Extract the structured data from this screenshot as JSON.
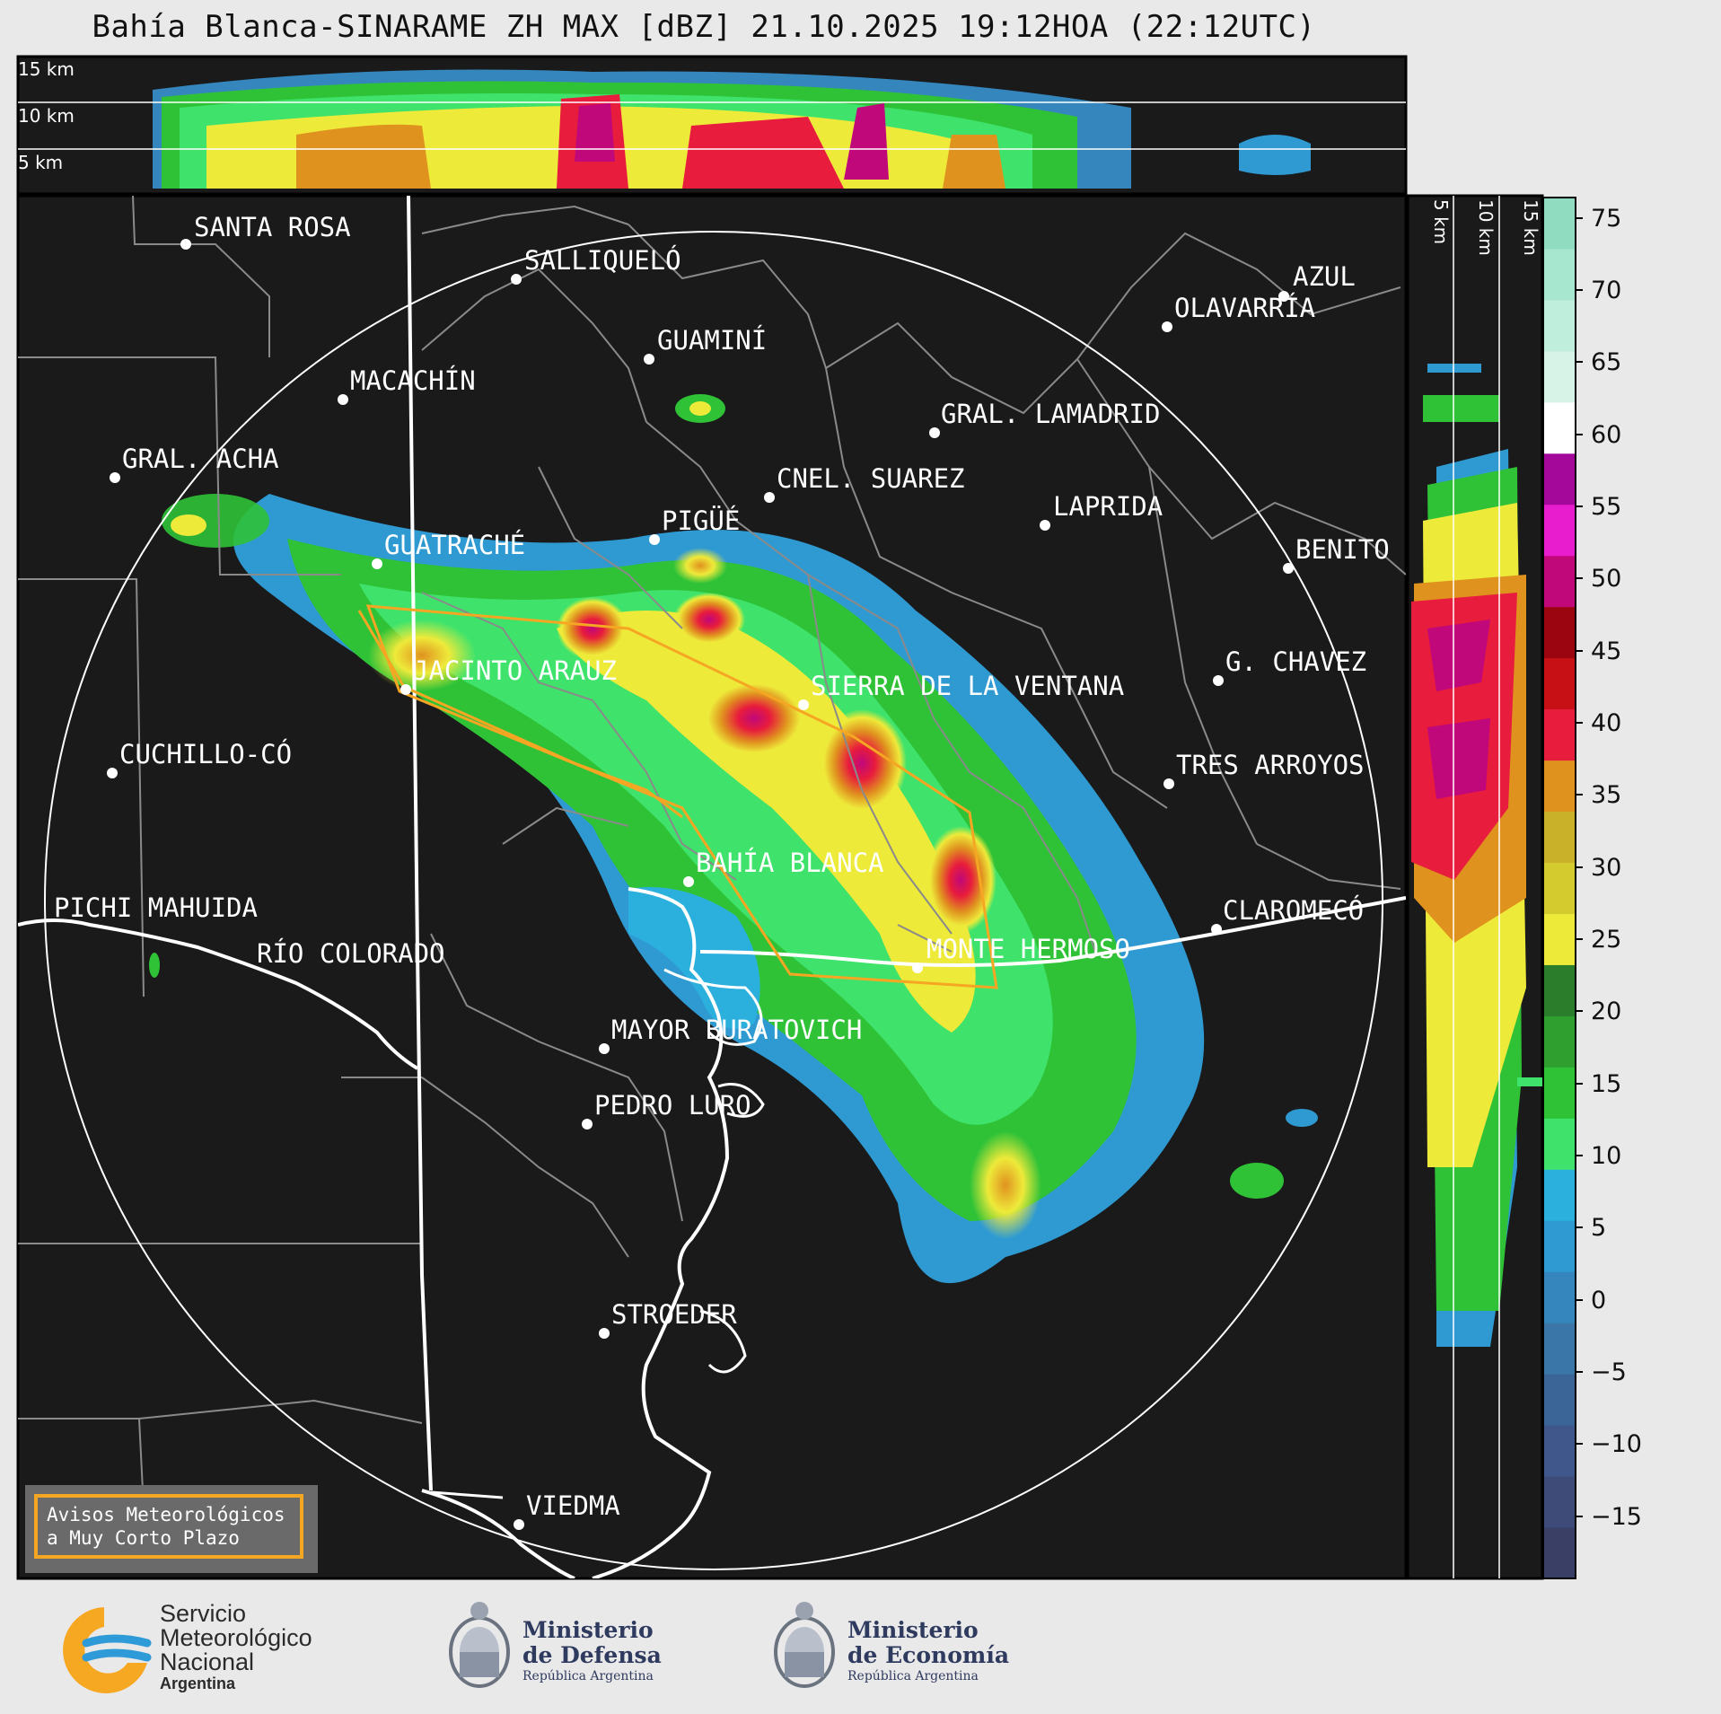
{
  "title": "Bahía Blanca-SINARAME ZH MAX [dBZ] 21.10.2025 19:12HOA (22:12UTC)",
  "top_panel": {
    "altitude_labels": [
      "15 km",
      "10 km",
      "5 km"
    ]
  },
  "side_panel": {
    "altitude_labels": [
      "5 km",
      "10 km",
      "15 km"
    ]
  },
  "colorbar": {
    "ticks": [
      "75",
      "70",
      "65",
      "60",
      "55",
      "50",
      "45",
      "40",
      "35",
      "30",
      "25",
      "20",
      "15",
      "10",
      "5",
      "0",
      "−5",
      "−10",
      "−15"
    ],
    "colors": [
      "#3a3f66",
      "#3e4a78",
      "#3f578a",
      "#3c6597",
      "#3a76a8",
      "#3486bd",
      "#2f9ad2",
      "#2bb0de",
      "#3fe36b",
      "#2fc237",
      "#2f9f2f",
      "#2b7d2b",
      "#eeea3a",
      "#d4cc2e",
      "#c9b12a",
      "#e0921f",
      "#e81c3c",
      "#c70f16",
      "#9a0510",
      "#c0087a",
      "#e81dce",
      "#a3089a",
      "#ffffff",
      "#d7f2e7",
      "#bfeedd",
      "#a7e6cf",
      "#8fdcc0"
    ]
  },
  "map_labels": {
    "santa_rosa": "SANTA ROSA",
    "salliquelo": "SALLIQUELÓ",
    "guamini": "GUAMINÍ",
    "macachin": "MACACHÍN",
    "azul": "AZUL",
    "olavarria": "OLAVARRÍA",
    "gral_lamadrid": "GRAL. LAMADRID",
    "gral_acha": "GRAL. ACHA",
    "cnel_suarez": "CNEL. SUAREZ",
    "laprida": "LAPRIDA",
    "pigue": "PIGÜÉ",
    "guatrache": "GUATRACHÉ",
    "benito": "BENITO",
    "jacinto_arauz": "JACINTO ARAUZ",
    "sierra_ventana": "SIERRA DE LA VENTANA",
    "g_chavez": "G. CHAVEZ",
    "cuchillo_co": "CUCHILLO-CÓ",
    "tres_arroyos": "TRES ARROYOS",
    "bahia_blanca": "BAHÍA BLANCA",
    "pichi_mahuida": "PICHI MAHUIDA",
    "claromeco": "CLAROMECÓ",
    "rio_colorado": "RÍO COLORADO",
    "monte_hermoso": "MONTE HERMOSO",
    "mayor_buratovich": "MAYOR BURATOVICH",
    "pedro_luro": "PEDRO LURO",
    "stroeder": "STROEDER",
    "viedma": "VIEDMA"
  },
  "aviso": {
    "line1": "Avisos Meteorológicos",
    "line2": "a Muy Corto Plazo"
  },
  "footer": {
    "smn_line1": "Servicio",
    "smn_line2": "Meteorológico",
    "smn_line3": "Nacional",
    "smn_line4": "Argentina",
    "defensa_line1": "Ministerio",
    "defensa_line2": "de Defensa",
    "defensa_line3": "República Argentina",
    "economia_line1": "Ministerio",
    "economia_line2": "de Economía",
    "economia_line3": "República Argentina"
  }
}
